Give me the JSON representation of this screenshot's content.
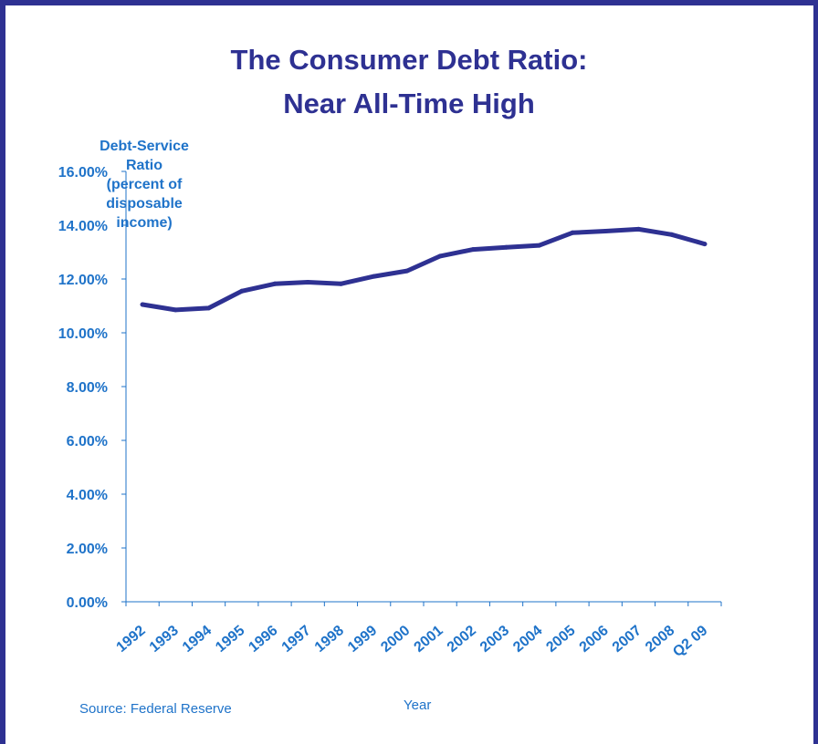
{
  "title_line1": "The Consumer Debt Ratio:",
  "title_line2": "Near All-Time High",
  "ylabel_lines": [
    "Debt-Service",
    "Ratio",
    "(percent of",
    "disposable",
    "income)"
  ],
  "source": "Source: Federal Reserve",
  "colors": {
    "frame": "#2E3192",
    "line": "#2E3192",
    "text": "#1F73C9",
    "axis": "#1F73C9"
  },
  "chart_data": {
    "type": "line",
    "title": "The Consumer Debt Ratio: Near All-Time High",
    "xlabel": "Year",
    "ylabel": "Debt-Service Ratio (percent of disposable income)",
    "ylim": [
      0,
      16
    ],
    "yticks": [
      "0.00%",
      "2.00%",
      "4.00%",
      "6.00%",
      "8.00%",
      "10.00%",
      "12.00%",
      "14.00%",
      "16.00%"
    ],
    "categories": [
      "1992",
      "1993",
      "1994",
      "1995",
      "1996",
      "1997",
      "1998",
      "1999",
      "2000",
      "2001",
      "2002",
      "2003",
      "2004",
      "2005",
      "2006",
      "2007",
      "2008",
      "Q2 09"
    ],
    "values": [
      11.05,
      10.85,
      10.92,
      11.55,
      11.82,
      11.88,
      11.82,
      12.1,
      12.3,
      12.85,
      13.1,
      13.18,
      13.25,
      13.72,
      13.78,
      13.85,
      13.65,
      13.3
    ],
    "grid": false,
    "legend": "none"
  }
}
